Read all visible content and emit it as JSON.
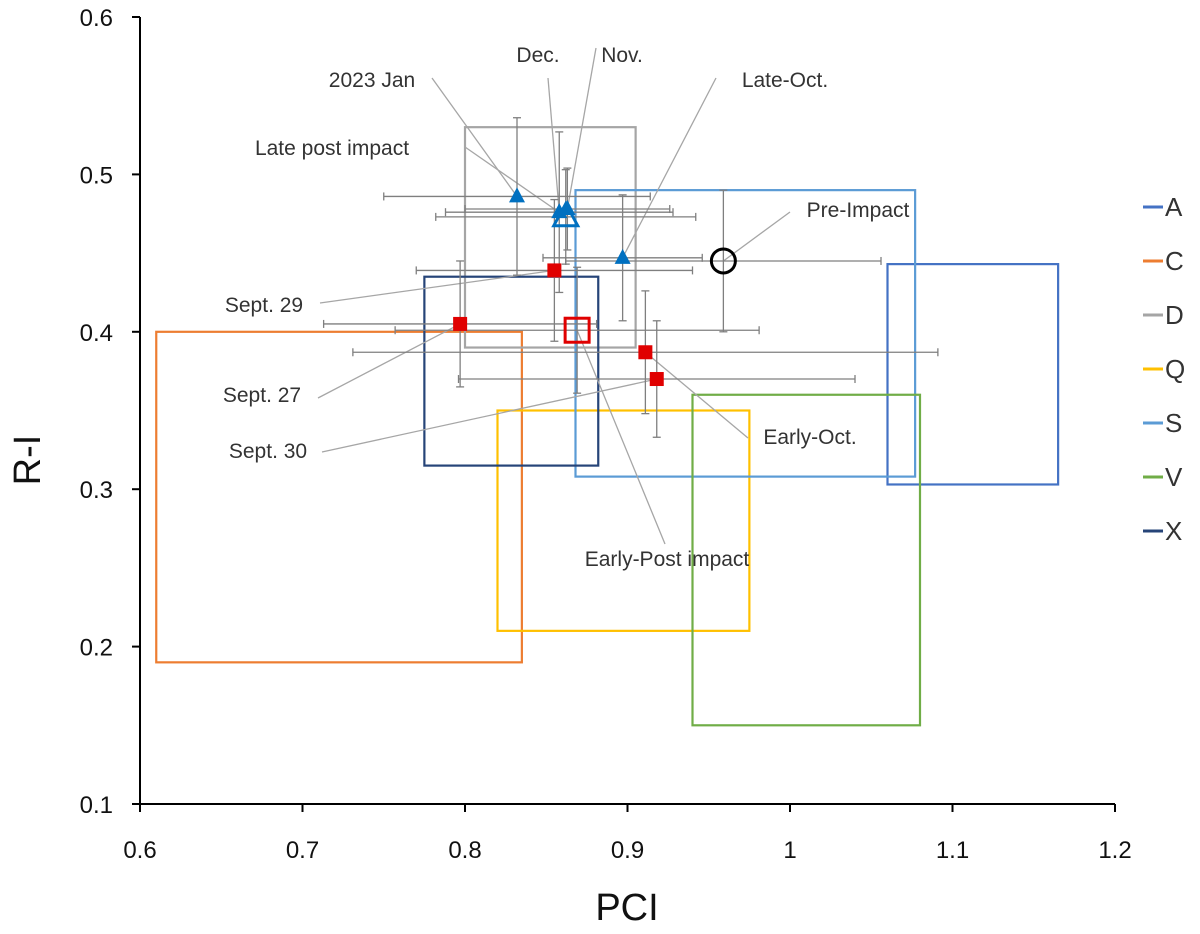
{
  "chart_data": {
    "type": "scatter",
    "xlabel": "PCI",
    "ylabel": "R-I",
    "xlim": [
      0.6,
      1.2
    ],
    "ylim": [
      0.1,
      0.6
    ],
    "xticks": [
      "0.6",
      "0.7",
      "0.8",
      "0.9",
      "1",
      "1.1",
      "1.2"
    ],
    "yticks": [
      "0.1",
      "0.2",
      "0.3",
      "0.4",
      "0.5",
      "0.6"
    ],
    "regions": [
      {
        "name": "A",
        "color": "#4472C4",
        "x": [
          1.06,
          1.165
        ],
        "y": [
          0.303,
          0.443
        ]
      },
      {
        "name": "C",
        "color": "#ED7D31",
        "x": [
          0.61,
          0.835
        ],
        "y": [
          0.19,
          0.4
        ]
      },
      {
        "name": "D",
        "color": "#A5A5A5",
        "x": [
          0.8,
          0.905
        ],
        "y": [
          0.39,
          0.53
        ]
      },
      {
        "name": "Q",
        "color": "#FFC000",
        "x": [
          0.82,
          0.975
        ],
        "y": [
          0.21,
          0.35
        ]
      },
      {
        "name": "S",
        "color": "#5B9BD5",
        "x": [
          0.868,
          1.077
        ],
        "y": [
          0.308,
          0.49
        ]
      },
      {
        "name": "V",
        "color": "#70AD47",
        "x": [
          0.94,
          1.08
        ],
        "y": [
          0.15,
          0.36
        ]
      },
      {
        "name": "X",
        "color": "#264478",
        "x": [
          0.775,
          0.882
        ],
        "y": [
          0.315,
          0.435
        ]
      }
    ],
    "series": [
      {
        "name": "Pre-Impact",
        "marker": "open-circle",
        "color": "#000000",
        "points": [
          {
            "x": 0.959,
            "y": 0.445,
            "xerr": 0.097,
            "yerr": 0.045
          }
        ]
      },
      {
        "name": "Early-Post impact",
        "marker": "open-square",
        "color": "#E00000",
        "points": [
          {
            "x": 0.869,
            "y": 0.401,
            "xerr": 0.112,
            "yerr": 0.04
          }
        ]
      },
      {
        "name": "Sept. 27",
        "marker": "square",
        "color": "#E00000",
        "points": [
          {
            "x": 0.797,
            "y": 0.405,
            "xerr": 0.084,
            "yerr": 0.04
          }
        ]
      },
      {
        "name": "Sept. 29",
        "marker": "square",
        "color": "#E00000",
        "points": [
          {
            "x": 0.855,
            "y": 0.439,
            "xerr": 0.085,
            "yerr": 0.045
          }
        ]
      },
      {
        "name": "Early-Oct.",
        "marker": "square",
        "color": "#E00000",
        "points": [
          {
            "x": 0.911,
            "y": 0.387,
            "xerr": 0.18,
            "yerr": 0.039
          }
        ]
      },
      {
        "name": "Sept. 30",
        "marker": "square",
        "color": "#E00000",
        "points": [
          {
            "x": 0.918,
            "y": 0.37,
            "xerr": 0.122,
            "yerr": 0.037
          }
        ]
      },
      {
        "name": "Late post impact",
        "marker": "open-triangle",
        "color": "#0070C0",
        "points": [
          {
            "x": 0.862,
            "y": 0.473,
            "xerr": 0.08,
            "yerr": 0.03
          }
        ]
      },
      {
        "name": "2023 Jan",
        "marker": "triangle",
        "color": "#0070C0",
        "points": [
          {
            "x": 0.832,
            "y": 0.486,
            "xerr": 0.082,
            "yerr": 0.05
          }
        ]
      },
      {
        "name": "Dec.",
        "marker": "triangle",
        "color": "#0070C0",
        "points": [
          {
            "x": 0.858,
            "y": 0.476,
            "xerr": 0.07,
            "yerr": 0.051
          }
        ]
      },
      {
        "name": "Nov.",
        "marker": "triangle",
        "color": "#0070C0",
        "points": [
          {
            "x": 0.863,
            "y": 0.478,
            "xerr": 0.063,
            "yerr": 0.026
          }
        ]
      },
      {
        "name": "Late-Oct.",
        "marker": "triangle",
        "color": "#0070C0",
        "points": [
          {
            "x": 0.897,
            "y": 0.447,
            "xerr": 0.049,
            "yerr": 0.04
          }
        ]
      }
    ],
    "annotations": [
      {
        "text": "2023 Jan",
        "series": "2023 Jan"
      },
      {
        "text": "Dec.",
        "series": "Dec."
      },
      {
        "text": "Nov.",
        "series": "Nov."
      },
      {
        "text": "Late-Oct.",
        "series": "Late-Oct."
      },
      {
        "text": "Late post impact",
        "series": "Late post impact"
      },
      {
        "text": "Pre-Impact",
        "series": "Pre-Impact"
      },
      {
        "text": "Sept. 29",
        "series": "Sept. 29"
      },
      {
        "text": "Sept. 27",
        "series": "Sept. 27"
      },
      {
        "text": "Sept. 30",
        "series": "Sept. 30"
      },
      {
        "text": "Early-Oct.",
        "series": "Early-Oct."
      },
      {
        "text": "Early-Post impact",
        "series": "Early-Post impact"
      }
    ],
    "legend": {
      "placement": "right",
      "entries": [
        "A",
        "C",
        "D",
        "Q",
        "S",
        "V",
        "X"
      ]
    }
  }
}
